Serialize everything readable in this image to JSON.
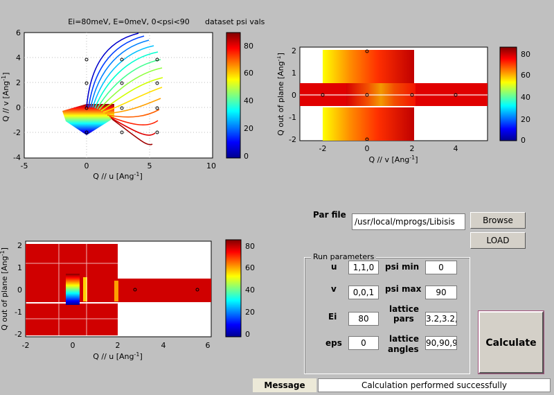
{
  "plots": {
    "top_left": {
      "title": "Ei=80meV, E=0meV, 0<psi<90",
      "colorbar_title": "dataset psi vals",
      "xlabel": "Q // u [Ang",
      "xlabel_sup": "-1",
      "xlabel_end": "]",
      "ylabel": "Q // v [Ang",
      "ylabel_sup": "-1",
      "ylabel_end": "]",
      "xticks": [
        "-5",
        "0",
        "5",
        "10"
      ],
      "yticks": [
        "6",
        "4",
        "2",
        "0",
        "-2",
        "-4"
      ],
      "cbar_ticks": [
        "80",
        "60",
        "40",
        "20",
        "0"
      ]
    },
    "top_right": {
      "xlabel": "Q // v [Ang",
      "xlabel_sup": "-1",
      "xlabel_end": "]",
      "ylabel": "Q out of plane [Ang",
      "ylabel_sup": "-1",
      "ylabel_end": "]",
      "xticks": [
        "-2",
        "0",
        "2",
        "4"
      ],
      "yticks": [
        "2",
        "1",
        "0",
        "-1",
        "-2"
      ],
      "cbar_ticks": [
        "80",
        "60",
        "40",
        "20",
        "0"
      ]
    },
    "bottom_left": {
      "xlabel": "Q // u [Ang",
      "xlabel_sup": "-1",
      "xlabel_end": "]",
      "ylabel": "Q out of plane [Ang",
      "ylabel_sup": "-1",
      "ylabel_end": "]",
      "xticks": [
        "-2",
        "0",
        "2",
        "4",
        "6"
      ],
      "yticks": [
        "2",
        "1",
        "0",
        "-1",
        "-2"
      ],
      "cbar_ticks": [
        "80",
        "60",
        "40",
        "20",
        "0"
      ]
    }
  },
  "par_file": {
    "label": "Par file",
    "value": "/usr/local/mprogs/Libisis",
    "browse_label": "Browse",
    "load_label": "LOAD"
  },
  "run_params": {
    "title": "Run parameters",
    "u_label": "u",
    "u_value": "1,1,0",
    "v_label": "v",
    "v_value": "0,0,1",
    "ei_label": "Ei",
    "ei_value": "80",
    "eps_label": "eps",
    "eps_value": "0",
    "psi_min_label": "psi min",
    "psi_min_value": "0",
    "psi_max_label": "psi max",
    "psi_max_value": "90",
    "lattice_pars_label_1": "lattice",
    "lattice_pars_label_2": "pars",
    "lattice_pars_value": "3.2,3.2,",
    "lattice_angles_label_1": "lattice",
    "lattice_angles_label_2": "angles",
    "lattice_angles_value": "90,90,9"
  },
  "calculate_label": "Calculate",
  "message": {
    "label": "Message",
    "text": "Calculation performed successfully"
  }
}
